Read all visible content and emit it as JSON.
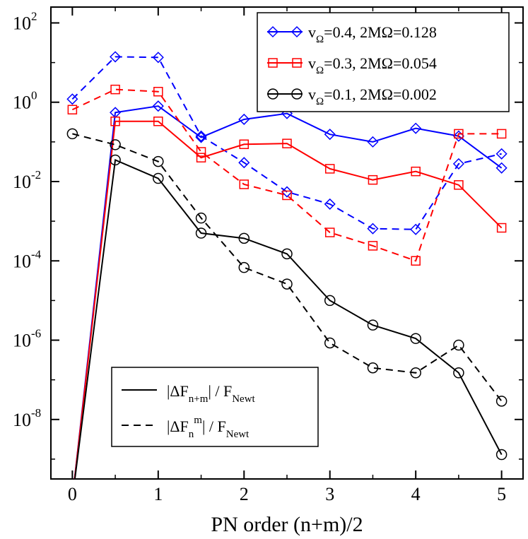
{
  "chart_data": {
    "type": "line",
    "xlabel": "PN order (n+m)/2",
    "ylabel": "",
    "xlim": [
      -0.25,
      5.25
    ],
    "ylim_log10": [
      -9.5,
      2.4
    ],
    "y_scale": "log",
    "grid": false,
    "x_ticks": [
      "0",
      "1",
      "2",
      "3",
      "4",
      "5"
    ],
    "y_ticks": [
      {
        "base": "10",
        "exp": "2"
      },
      {
        "base": "10",
        "exp": "0"
      },
      {
        "base": "10",
        "exp": "-2"
      },
      {
        "base": "10",
        "exp": "-4"
      },
      {
        "base": "10",
        "exp": "-6"
      },
      {
        "base": "10",
        "exp": "-8"
      }
    ],
    "x": [
      0,
      0.5,
      1,
      1.5,
      2,
      2.5,
      3,
      3.5,
      4,
      4.5,
      5
    ],
    "legend_top": {
      "placement": "top-right",
      "entries": [
        {
          "v": "v",
          "sub": "Ω",
          "rest": "=0.4, 2MΩ=0.128",
          "color": "#0000ff",
          "marker": "diamond"
        },
        {
          "v": "v",
          "sub": "Ω",
          "rest": "=0.3, 2MΩ=0.054",
          "color": "#ff0000",
          "marker": "square"
        },
        {
          "v": "v",
          "sub": "Ω",
          "rest": "=0.1, 2MΩ=0.002",
          "color": "#000000",
          "marker": "circle"
        }
      ]
    },
    "legend_bottom": {
      "placement": "bottom-left",
      "entries": [
        {
          "style": "solid",
          "pre": "|ΔF",
          "sub": "n+m",
          "sup": "",
          "post": "| / F",
          "post_sub": "Newt"
        },
        {
          "style": "dashed",
          "pre": "|ΔF",
          "sub": "n",
          "sup": "m",
          "post": "| / F",
          "post_sub": "Newt"
        }
      ]
    },
    "series": [
      {
        "group": "v=0.4",
        "style": "solid",
        "color": "#0000ff",
        "marker": "diamond",
        "values": [
          1e-10,
          0.55,
          0.8,
          0.13,
          0.37,
          0.52,
          0.155,
          0.1,
          0.22,
          0.14,
          0.022
        ]
      },
      {
        "group": "v=0.4",
        "style": "dashed",
        "color": "#0000ff",
        "marker": "diamond",
        "values": [
          1.2,
          14,
          13.5,
          0.14,
          0.03,
          0.0055,
          0.0027,
          0.00065,
          0.00062,
          0.028,
          0.05
        ]
      },
      {
        "group": "v=0.3",
        "style": "solid",
        "color": "#ff0000",
        "marker": "square",
        "values": [
          1e-10,
          0.33,
          0.33,
          0.04,
          0.087,
          0.091,
          0.021,
          0.011,
          0.018,
          0.0082,
          0.00068
        ]
      },
      {
        "group": "v=0.3",
        "style": "dashed",
        "color": "#ff0000",
        "marker": "square",
        "values": [
          0.65,
          2.1,
          1.85,
          0.056,
          0.0085,
          0.0045,
          0.00052,
          0.00024,
          0.0001,
          0.16,
          0.16
        ]
      },
      {
        "group": "v=0.1",
        "style": "solid",
        "color": "#000000",
        "marker": "circle",
        "values": [
          1e-10,
          0.035,
          0.012,
          0.0005,
          0.00037,
          0.00015,
          1e-05,
          2.4e-06,
          1.1e-06,
          1.5e-07,
          1.3e-09
        ]
      },
      {
        "group": "v=0.1",
        "style": "dashed",
        "color": "#000000",
        "marker": "circle",
        "values": [
          0.16,
          0.085,
          0.032,
          0.0012,
          6.8e-05,
          2.6e-05,
          8.5e-07,
          2e-07,
          1.5e-07,
          7.5e-07,
          2.9e-08
        ]
      }
    ]
  }
}
